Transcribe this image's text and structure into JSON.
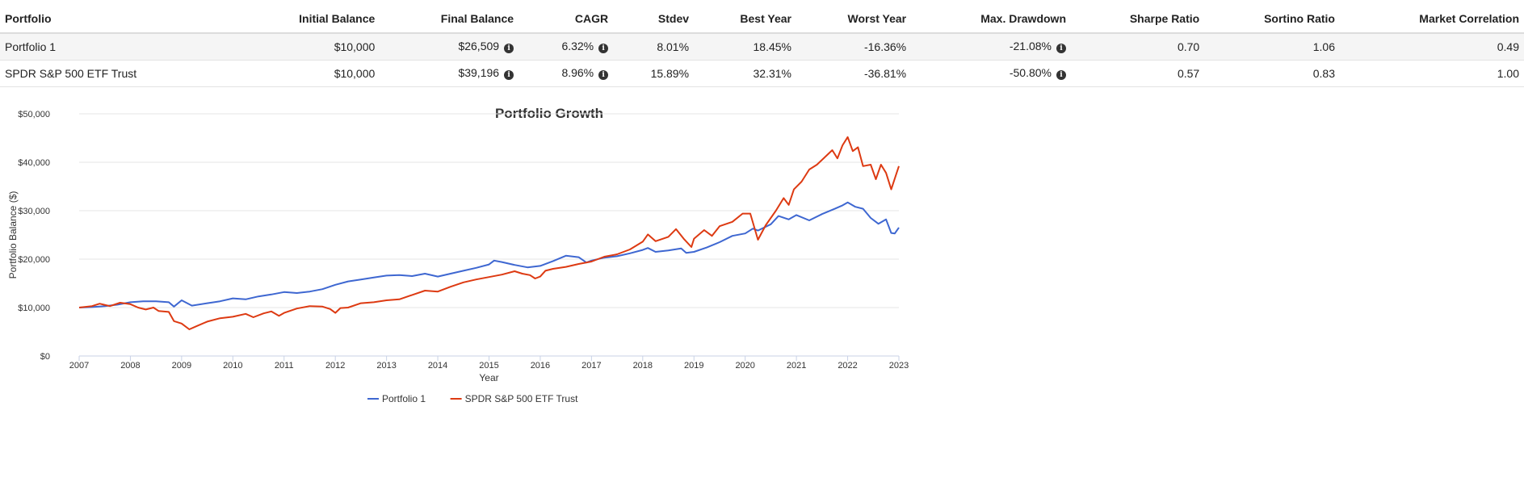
{
  "table": {
    "headers": [
      "Portfolio",
      "Initial Balance",
      "Final Balance",
      "CAGR",
      "Stdev",
      "Best Year",
      "Worst Year",
      "Max. Drawdown",
      "Sharpe Ratio",
      "Sortino Ratio",
      "Market Correlation"
    ],
    "rows": [
      {
        "portfolio": "Portfolio 1",
        "initial_balance": "$10,000",
        "final_balance": "$26,509",
        "cagr": "6.32%",
        "stdev": "8.01%",
        "best_year": "18.45%",
        "worst_year": "-16.36%",
        "max_drawdown": "-21.08%",
        "sharpe": "0.70",
        "sortino": "1.06",
        "market_correlation": "0.49"
      },
      {
        "portfolio": "SPDR S&P 500 ETF Trust",
        "initial_balance": "$10,000",
        "final_balance": "$39,196",
        "cagr": "8.96%",
        "stdev": "15.89%",
        "best_year": "32.31%",
        "worst_year": "-36.81%",
        "max_drawdown": "-50.80%",
        "sharpe": "0.57",
        "sortino": "0.83",
        "market_correlation": "1.00"
      }
    ],
    "info_icon": "info-circle-icon"
  },
  "chart_data": {
    "type": "line",
    "title": "Portfolio Growth",
    "xlabel": "Year",
    "ylabel": "Portfolio Balance ($)",
    "xlim": [
      2007,
      2023
    ],
    "ylim": [
      0,
      50000
    ],
    "x_ticks": [
      "2007",
      "2008",
      "2009",
      "2010",
      "2011",
      "2012",
      "2013",
      "2014",
      "2015",
      "2016",
      "2017",
      "2018",
      "2019",
      "2020",
      "2021",
      "2022",
      "2023"
    ],
    "y_ticks": [
      {
        "value": 0,
        "label": "$0"
      },
      {
        "value": 10000,
        "label": "$10,000"
      },
      {
        "value": 20000,
        "label": "$20,000"
      },
      {
        "value": 30000,
        "label": "$30,000"
      },
      {
        "value": 40000,
        "label": "$40,000"
      },
      {
        "value": 50000,
        "label": "$50,000"
      }
    ],
    "grid": true,
    "legend": "bottom-center",
    "series": [
      {
        "name": "Portfolio 1",
        "color": "#3e67d1",
        "points": [
          [
            2007.0,
            10000
          ],
          [
            2007.25,
            10100
          ],
          [
            2007.5,
            10300
          ],
          [
            2007.75,
            10600
          ],
          [
            2008.0,
            11100
          ],
          [
            2008.25,
            11300
          ],
          [
            2008.5,
            11300
          ],
          [
            2008.75,
            11100
          ],
          [
            2008.85,
            10200
          ],
          [
            2009.0,
            11500
          ],
          [
            2009.2,
            10400
          ],
          [
            2009.5,
            10900
          ],
          [
            2009.75,
            11300
          ],
          [
            2010.0,
            11900
          ],
          [
            2010.25,
            11700
          ],
          [
            2010.5,
            12300
          ],
          [
            2010.75,
            12700
          ],
          [
            2011.0,
            13200
          ],
          [
            2011.25,
            13000
          ],
          [
            2011.5,
            13300
          ],
          [
            2011.75,
            13800
          ],
          [
            2012.0,
            14700
          ],
          [
            2012.25,
            15400
          ],
          [
            2012.5,
            15800
          ],
          [
            2012.75,
            16200
          ],
          [
            2013.0,
            16600
          ],
          [
            2013.25,
            16700
          ],
          [
            2013.5,
            16500
          ],
          [
            2013.75,
            17000
          ],
          [
            2014.0,
            16400
          ],
          [
            2014.25,
            17000
          ],
          [
            2014.5,
            17600
          ],
          [
            2014.75,
            18200
          ],
          [
            2015.0,
            18900
          ],
          [
            2015.1,
            19700
          ],
          [
            2015.25,
            19400
          ],
          [
            2015.5,
            18800
          ],
          [
            2015.75,
            18300
          ],
          [
            2016.0,
            18600
          ],
          [
            2016.25,
            19600
          ],
          [
            2016.5,
            20700
          ],
          [
            2016.75,
            20400
          ],
          [
            2016.9,
            19300
          ],
          [
            2017.0,
            19700
          ],
          [
            2017.25,
            20300
          ],
          [
            2017.5,
            20600
          ],
          [
            2017.75,
            21200
          ],
          [
            2018.0,
            21900
          ],
          [
            2018.1,
            22300
          ],
          [
            2018.25,
            21500
          ],
          [
            2018.5,
            21800
          ],
          [
            2018.75,
            22200
          ],
          [
            2018.85,
            21300
          ],
          [
            2019.0,
            21500
          ],
          [
            2019.25,
            22400
          ],
          [
            2019.5,
            23500
          ],
          [
            2019.75,
            24800
          ],
          [
            2020.0,
            25300
          ],
          [
            2020.15,
            26300
          ],
          [
            2020.25,
            25900
          ],
          [
            2020.5,
            27200
          ],
          [
            2020.65,
            28900
          ],
          [
            2020.85,
            28200
          ],
          [
            2021.0,
            29100
          ],
          [
            2021.25,
            28000
          ],
          [
            2021.5,
            29300
          ],
          [
            2021.75,
            30400
          ],
          [
            2021.9,
            31100
          ],
          [
            2022.0,
            31700
          ],
          [
            2022.15,
            30800
          ],
          [
            2022.3,
            30400
          ],
          [
            2022.45,
            28500
          ],
          [
            2022.6,
            27300
          ],
          [
            2022.75,
            28200
          ],
          [
            2022.85,
            25400
          ],
          [
            2022.92,
            25300
          ],
          [
            2023.0,
            26509
          ]
        ]
      },
      {
        "name": "SPDR S&P 500 ETF Trust",
        "color": "#dd3a12",
        "points": [
          [
            2007.0,
            10000
          ],
          [
            2007.25,
            10300
          ],
          [
            2007.4,
            10800
          ],
          [
            2007.6,
            10300
          ],
          [
            2007.8,
            11000
          ],
          [
            2008.0,
            10700
          ],
          [
            2008.15,
            10000
          ],
          [
            2008.3,
            9600
          ],
          [
            2008.45,
            10000
          ],
          [
            2008.55,
            9300
          ],
          [
            2008.75,
            9100
          ],
          [
            2008.85,
            7200
          ],
          [
            2009.0,
            6700
          ],
          [
            2009.15,
            5500
          ],
          [
            2009.3,
            6200
          ],
          [
            2009.5,
            7100
          ],
          [
            2009.75,
            7800
          ],
          [
            2010.0,
            8100
          ],
          [
            2010.25,
            8700
          ],
          [
            2010.4,
            8000
          ],
          [
            2010.6,
            8800
          ],
          [
            2010.75,
            9200
          ],
          [
            2010.9,
            8300
          ],
          [
            2011.0,
            8900
          ],
          [
            2011.25,
            9800
          ],
          [
            2011.5,
            10300
          ],
          [
            2011.75,
            10200
          ],
          [
            2011.9,
            9700
          ],
          [
            2012.0,
            8900
          ],
          [
            2012.1,
            9900
          ],
          [
            2012.25,
            10000
          ],
          [
            2012.5,
            10900
          ],
          [
            2012.75,
            11100
          ],
          [
            2013.0,
            11500
          ],
          [
            2013.25,
            11700
          ],
          [
            2013.5,
            12600
          ],
          [
            2013.75,
            13500
          ],
          [
            2014.0,
            13300
          ],
          [
            2014.25,
            14300
          ],
          [
            2014.5,
            15200
          ],
          [
            2014.75,
            15800
          ],
          [
            2015.0,
            16300
          ],
          [
            2015.25,
            16800
          ],
          [
            2015.5,
            17500
          ],
          [
            2015.65,
            17000
          ],
          [
            2015.8,
            16700
          ],
          [
            2015.9,
            16000
          ],
          [
            2016.0,
            16400
          ],
          [
            2016.1,
            17600
          ],
          [
            2016.25,
            18000
          ],
          [
            2016.5,
            18400
          ],
          [
            2016.75,
            19000
          ],
          [
            2017.0,
            19500
          ],
          [
            2017.25,
            20500
          ],
          [
            2017.5,
            21000
          ],
          [
            2017.75,
            22000
          ],
          [
            2018.0,
            23600
          ],
          [
            2018.1,
            25100
          ],
          [
            2018.25,
            23700
          ],
          [
            2018.5,
            24600
          ],
          [
            2018.65,
            26200
          ],
          [
            2018.8,
            24200
          ],
          [
            2018.95,
            22500
          ],
          [
            2019.0,
            24200
          ],
          [
            2019.2,
            26000
          ],
          [
            2019.35,
            24800
          ],
          [
            2019.5,
            26800
          ],
          [
            2019.75,
            27700
          ],
          [
            2019.95,
            29400
          ],
          [
            2020.1,
            29400
          ],
          [
            2020.25,
            24000
          ],
          [
            2020.4,
            27000
          ],
          [
            2020.6,
            30000
          ],
          [
            2020.75,
            32600
          ],
          [
            2020.85,
            31200
          ],
          [
            2020.95,
            34400
          ],
          [
            2021.1,
            36000
          ],
          [
            2021.25,
            38500
          ],
          [
            2021.4,
            39500
          ],
          [
            2021.55,
            41000
          ],
          [
            2021.7,
            42500
          ],
          [
            2021.8,
            40800
          ],
          [
            2021.9,
            43500
          ],
          [
            2022.0,
            45200
          ],
          [
            2022.1,
            42300
          ],
          [
            2022.2,
            43100
          ],
          [
            2022.3,
            39200
          ],
          [
            2022.45,
            39500
          ],
          [
            2022.55,
            36500
          ],
          [
            2022.65,
            39500
          ],
          [
            2022.75,
            37800
          ],
          [
            2022.85,
            34400
          ],
          [
            2022.95,
            37600
          ],
          [
            2023.0,
            39196
          ]
        ]
      }
    ]
  }
}
